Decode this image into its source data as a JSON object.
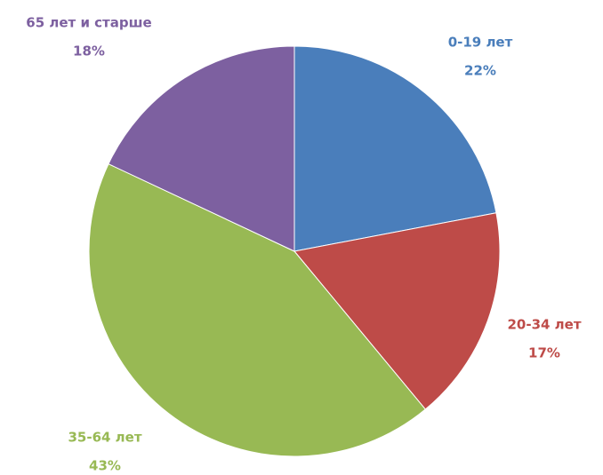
{
  "chart_data": {
    "type": "pie",
    "categories": [
      "0-19 лет",
      "20-34 лет",
      "35-64 лет",
      "65 лет и старше"
    ],
    "values": [
      22,
      17,
      43,
      18
    ],
    "value_labels": [
      "22%",
      "17%",
      "43%",
      "18%"
    ],
    "colors": [
      "#4a7ebb",
      "#be4b48",
      "#98b954",
      "#7d60a0"
    ]
  }
}
